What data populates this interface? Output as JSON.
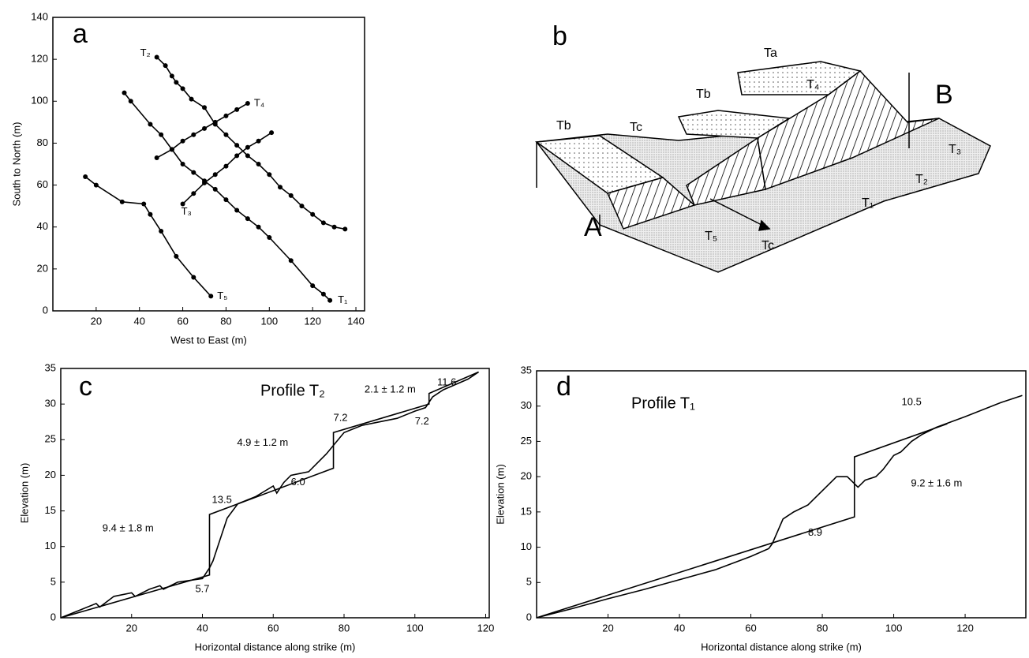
{
  "chart_data": [
    {
      "type": "line",
      "label": "a",
      "xlabel": "West to East (m)",
      "ylabel": "South to North (m)",
      "xlim": [
        0,
        144
      ],
      "ylim": [
        0,
        140
      ],
      "xticks": [
        20,
        40,
        60,
        80,
        100,
        120,
        140
      ],
      "yticks": [
        0,
        20,
        40,
        60,
        80,
        100,
        120,
        140
      ],
      "markers": true,
      "series": [
        {
          "name": "T₁",
          "color": "#000000",
          "x": [
            33,
            36,
            45,
            50,
            55,
            60,
            65,
            70,
            75,
            80,
            85,
            90,
            95,
            100,
            110,
            120,
            125,
            128
          ],
          "values": [
            104,
            100,
            89,
            84,
            77,
            70,
            66,
            62,
            58,
            53,
            48,
            44,
            40,
            35,
            24,
            12,
            8,
            5
          ]
        },
        {
          "name": "T₂",
          "color": "#000000",
          "x": [
            48,
            52,
            55,
            57,
            60,
            64,
            70,
            75,
            80,
            85,
            90,
            95,
            100,
            105,
            110,
            115,
            120,
            125,
            130,
            135
          ],
          "values": [
            121,
            117,
            112,
            109,
            106,
            101,
            97,
            89,
            84,
            79,
            74,
            70,
            65,
            59,
            55,
            50,
            46,
            42,
            40,
            39
          ]
        },
        {
          "name": "T₃",
          "color": "#000000",
          "x": [
            60,
            65,
            70,
            75,
            80,
            85,
            90,
            95,
            101
          ],
          "values": [
            51,
            56,
            61,
            65,
            69,
            74,
            78,
            81,
            85
          ]
        },
        {
          "name": "T₄",
          "color": "#000000",
          "x": [
            48,
            55,
            60,
            65,
            70,
            75,
            80,
            85,
            90
          ],
          "values": [
            73,
            77,
            81,
            84,
            87,
            90,
            93,
            96,
            99
          ]
        },
        {
          "name": "T₅",
          "color": "#000000",
          "x": [
            15,
            20,
            32,
            42,
            45,
            50,
            57,
            65,
            73
          ],
          "values": [
            64,
            60,
            52,
            51,
            46,
            38,
            26,
            16,
            7
          ]
        }
      ]
    },
    {
      "type": "line",
      "label": "c",
      "title": "Profile T₂",
      "xlabel": "Horizontal distance along strike (m)",
      "ylabel": "Elevation (m)",
      "xlim": [
        0,
        121
      ],
      "ylim": [
        0,
        35
      ],
      "xticks": [
        20,
        40,
        60,
        80,
        100,
        120
      ],
      "yticks": [
        0,
        5,
        10,
        15,
        20,
        25,
        30,
        35
      ],
      "markers": false,
      "series": [
        {
          "color": "#000000",
          "x": [
            0,
            5,
            10,
            11,
            15,
            20,
            21,
            25,
            28,
            29,
            33,
            40,
            42,
            43,
            45,
            47,
            50,
            55,
            60,
            61,
            63,
            65,
            70,
            75,
            80,
            85,
            90,
            95,
            100,
            103,
            105,
            108,
            115,
            118
          ],
          "values": [
            0,
            1,
            2,
            1.5,
            3,
            3.5,
            3,
            4,
            4.5,
            4,
            5,
            5.5,
            7,
            8,
            11,
            14,
            16,
            17,
            18.5,
            17.5,
            19,
            20,
            20.5,
            23,
            26,
            27,
            27.5,
            28,
            29,
            29.5,
            31,
            32,
            33.5,
            34.5
          ]
        },
        {
          "color": "#000000",
          "x": [
            0,
            42,
            42,
            77,
            77,
            104,
            104,
            118
          ],
          "values": [
            0,
            6,
            14.5,
            21,
            26,
            30,
            31.5,
            34.5
          ]
        }
      ],
      "annotations": [
        "9.4 ± 1.8 m",
        "13.5",
        "5.7",
        "4.9 ± 1.2 m",
        "6.0",
        "7.2",
        "2.1 ± 1.2 m",
        "7.2",
        "11.6"
      ]
    },
    {
      "type": "line",
      "label": "d",
      "title": "Profile T₁",
      "xlabel": "Horizontal distance along strike (m)",
      "ylabel": "Elevation (m)",
      "xlim": [
        0,
        137
      ],
      "ylim": [
        0,
        35
      ],
      "xticks": [
        20,
        40,
        60,
        80,
        100,
        120
      ],
      "yticks": [
        0,
        5,
        10,
        15,
        20,
        25,
        30,
        35
      ],
      "markers": false,
      "series": [
        {
          "color": "#000000",
          "x": [
            0,
            10,
            20,
            30,
            40,
            50,
            60,
            65,
            66,
            69,
            72,
            76,
            80,
            84,
            87,
            89,
            90,
            92,
            95,
            97,
            100,
            102,
            105,
            108,
            112,
            120,
            130,
            136
          ],
          "values": [
            0,
            1.3,
            2.7,
            4,
            5.4,
            6.8,
            8.7,
            9.8,
            10.5,
            14,
            15,
            16,
            18,
            20,
            20,
            19,
            18.5,
            19.5,
            20,
            21,
            23,
            23.5,
            25,
            26,
            27,
            28.5,
            30.5,
            31.5
          ]
        },
        {
          "color": "#000000",
          "x": [
            0,
            89,
            89,
            115
          ],
          "values": [
            0,
            14.3,
            22.8,
            27.5
          ]
        }
      ],
      "annotations": [
        "10.5",
        "8.9",
        "9.2 ± 1.6 m"
      ]
    }
  ],
  "diagram": {
    "label": "b",
    "labels": [
      "Ta",
      "T₄",
      "Tb",
      "Tb",
      "Tc",
      "B",
      "T₃",
      "T₂",
      "T₁",
      "A",
      "T₅",
      "Tc"
    ]
  }
}
